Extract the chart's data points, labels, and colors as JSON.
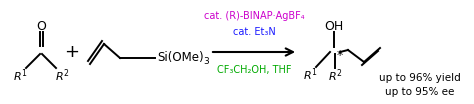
{
  "fig_width": 4.74,
  "fig_height": 1.04,
  "dpi": 100,
  "bg_color": "#ffffff",
  "color_purple": "#cc00cc",
  "color_blue": "#1a1aff",
  "color_green": "#00aa00",
  "color_black": "#000000",
  "cat_line1": "cat. (R)-BINAP·AgBF₄",
  "cat_line2": "cat. Et₃N",
  "solvent_line": "CF₃CH₂OH, THF",
  "yield_line1": "up to 96% yield",
  "yield_line2": "up to 95% ee"
}
